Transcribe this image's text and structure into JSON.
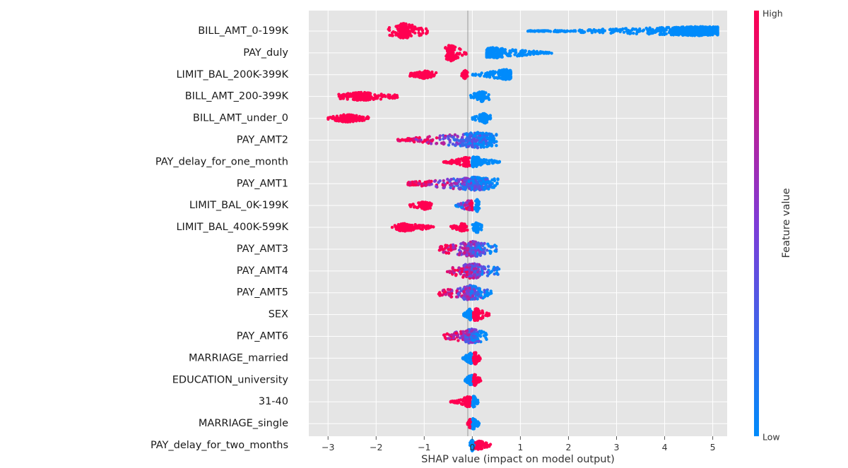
{
  "chart_data": {
    "type": "scatter",
    "subtype": "shap-beeswarm",
    "title": "",
    "xlabel": "SHAP value (impact on model output)",
    "xlim": [
      -3.4,
      5.3
    ],
    "xticks": [
      -3,
      -2,
      -1,
      0,
      1,
      2,
      3,
      4,
      5
    ],
    "xtick_labels": [
      "−3",
      "−2",
      "−1",
      "0",
      "1",
      "2",
      "3",
      "4",
      "5"
    ],
    "grid": true,
    "colorbar": {
      "label": "Feature value",
      "high_label": "High",
      "low_label": "Low",
      "high_color": "#ff0051",
      "mid_color": "#7e3cd7",
      "low_color": "#008bfb"
    },
    "features": [
      {
        "name": "BILL_AMT_0-199K",
        "segments": [
          {
            "from": -1.75,
            "to": -0.93,
            "peak": -1.42,
            "spread": 0.8,
            "value": "high"
          },
          {
            "from": 1.15,
            "to": 5.1,
            "peak": 4.7,
            "spread": 0.35,
            "value": "low"
          }
        ]
      },
      {
        "name": "PAY_duly",
        "segments": [
          {
            "from": -0.58,
            "to": -0.12,
            "peak": -0.45,
            "spread": 0.85,
            "value": "high"
          },
          {
            "from": 0.3,
            "to": 1.65,
            "peak": 0.45,
            "spread": 0.45,
            "value": "low"
          }
        ]
      },
      {
        "name": "LIMIT_BAL_200K-399K",
        "segments": [
          {
            "from": -1.3,
            "to": -0.75,
            "peak": -1.0,
            "spread": 0.25,
            "value": "high"
          },
          {
            "from": -0.22,
            "to": -0.1,
            "peak": -0.15,
            "spread": 0.3,
            "value": "high"
          },
          {
            "from": 0.0,
            "to": 0.8,
            "peak": 0.7,
            "spread": 0.45,
            "value": "low"
          }
        ]
      },
      {
        "name": "BILL_AMT_200-399K",
        "segments": [
          {
            "from": -2.8,
            "to": -1.55,
            "peak": -2.3,
            "spread": 0.3,
            "value": "high"
          },
          {
            "from": -0.05,
            "to": 0.35,
            "peak": 0.2,
            "spread": 0.45,
            "value": "low"
          }
        ]
      },
      {
        "name": "BILL_AMT_under_0",
        "segments": [
          {
            "from": -3.0,
            "to": -2.15,
            "peak": -2.6,
            "spread": 0.25,
            "value": "high"
          },
          {
            "from": 0.0,
            "to": 0.38,
            "peak": 0.25,
            "spread": 0.4,
            "value": "low"
          }
        ]
      },
      {
        "name": "PAY_AMT2",
        "segments": [
          {
            "from": -1.55,
            "to": 0.5,
            "peak": 0.12,
            "spread": 0.8,
            "value": "mixed",
            "high_side": "left"
          }
        ]
      },
      {
        "name": "PAY_delay_for_one_month",
        "segments": [
          {
            "from": -0.6,
            "to": -0.05,
            "peak": -0.12,
            "spread": 0.35,
            "value": "high"
          },
          {
            "from": 0.0,
            "to": 0.6,
            "peak": 0.05,
            "spread": 0.45,
            "value": "low"
          }
        ]
      },
      {
        "name": "PAY_AMT1",
        "segments": [
          {
            "from": -1.35,
            "to": 0.55,
            "peak": 0.05,
            "spread": 0.65,
            "value": "mixed",
            "high_side": "left"
          }
        ]
      },
      {
        "name": "LIMIT_BAL_0K-199K",
        "segments": [
          {
            "from": -1.3,
            "to": -0.85,
            "peak": -1.0,
            "spread": 0.25,
            "value": "high"
          },
          {
            "from": -0.35,
            "to": 0.0,
            "peak": -0.05,
            "spread": 0.45,
            "value": "mixed",
            "high_side": "right"
          },
          {
            "from": 0.05,
            "to": 0.15,
            "peak": 0.1,
            "spread": 0.6,
            "value": "low"
          }
        ]
      },
      {
        "name": "LIMIT_BAL_400K-599K",
        "segments": [
          {
            "from": -1.7,
            "to": -0.8,
            "peak": -1.4,
            "spread": 0.25,
            "value": "high"
          },
          {
            "from": -0.45,
            "to": -0.1,
            "peak": -0.2,
            "spread": 0.25,
            "value": "high"
          },
          {
            "from": 0.0,
            "to": 0.2,
            "peak": 0.1,
            "spread": 0.5,
            "value": "low"
          }
        ]
      },
      {
        "name": "PAY_AMT3",
        "segments": [
          {
            "from": -0.7,
            "to": 0.52,
            "peak": 0.0,
            "spread": 0.8,
            "value": "mixed",
            "high_side": "left"
          }
        ]
      },
      {
        "name": "PAY_AMT4",
        "segments": [
          {
            "from": -0.52,
            "to": 0.58,
            "peak": 0.0,
            "spread": 0.8,
            "value": "mixed",
            "high_side": "left"
          }
        ]
      },
      {
        "name": "PAY_AMT5",
        "segments": [
          {
            "from": -0.7,
            "to": 0.4,
            "peak": -0.05,
            "spread": 0.75,
            "value": "mixed",
            "high_side": "left"
          }
        ]
      },
      {
        "name": "SEX",
        "segments": [
          {
            "from": -0.18,
            "to": 0.0,
            "peak": -0.05,
            "spread": 0.5,
            "value": "low"
          },
          {
            "from": 0.02,
            "to": 0.35,
            "peak": 0.08,
            "spread": 0.65,
            "value": "high"
          }
        ]
      },
      {
        "name": "PAY_AMT6",
        "segments": [
          {
            "from": -0.6,
            "to": 0.3,
            "peak": 0.0,
            "spread": 0.75,
            "value": "mixed",
            "high_side": "left"
          }
        ]
      },
      {
        "name": "MARRIAGE_married",
        "segments": [
          {
            "from": -0.2,
            "to": 0.0,
            "peak": -0.03,
            "spread": 0.5,
            "value": "low"
          },
          {
            "from": 0.02,
            "to": 0.18,
            "peak": 0.06,
            "spread": 0.55,
            "value": "high"
          }
        ]
      },
      {
        "name": "EDUCATION_university",
        "segments": [
          {
            "from": -0.15,
            "to": 0.0,
            "peak": -0.03,
            "spread": 0.5,
            "value": "low"
          },
          {
            "from": 0.02,
            "to": 0.18,
            "peak": 0.05,
            "spread": 0.5,
            "value": "high"
          }
        ]
      },
      {
        "name": "31-40",
        "segments": [
          {
            "from": -0.45,
            "to": -0.02,
            "peak": -0.08,
            "spread": 0.45,
            "value": "high"
          },
          {
            "from": 0.0,
            "to": 0.12,
            "peak": 0.03,
            "spread": 0.55,
            "value": "low"
          }
        ]
      },
      {
        "name": "MARRIAGE_single",
        "segments": [
          {
            "from": -0.1,
            "to": -0.01,
            "peak": -0.04,
            "spread": 0.4,
            "value": "high"
          },
          {
            "from": 0.0,
            "to": 0.15,
            "peak": 0.03,
            "spread": 0.55,
            "value": "low"
          }
        ]
      },
      {
        "name": "PAY_delay_for_two_months",
        "segments": [
          {
            "from": -0.05,
            "to": 0.05,
            "peak": 0.0,
            "spread": 0.5,
            "value": "low"
          },
          {
            "from": 0.05,
            "to": 0.38,
            "peak": 0.15,
            "spread": 0.35,
            "value": "high"
          }
        ]
      }
    ]
  }
}
